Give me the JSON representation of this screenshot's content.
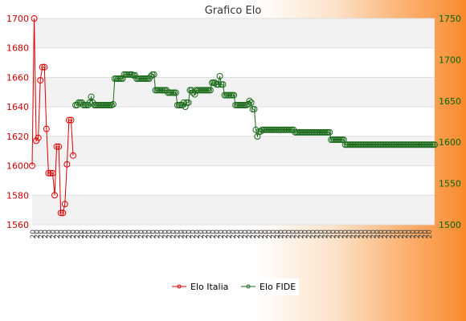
{
  "chart_data": {
    "type": "line",
    "title": "Grafico Elo",
    "xlabel": "",
    "ylabel_left": "",
    "ylabel_right": "",
    "y_left": {
      "ylim": [
        1560,
        1700
      ],
      "ticks": [
        1560,
        1580,
        1600,
        1620,
        1640,
        1660,
        1680,
        1700
      ],
      "color": "#cc0000"
    },
    "y_right": {
      "ylim": [
        1500,
        1750
      ],
      "ticks": [
        1500,
        1550,
        1600,
        1650,
        1700,
        1750
      ],
      "color": "#006600"
    },
    "grid": true,
    "legend_position": "bottom",
    "x_tick_label_prefix": "20",
    "series": [
      {
        "name": "Elo Italia",
        "axis": "left",
        "color": "#dd0000",
        "values": [
          1600,
          1700,
          1617,
          1619,
          1658,
          1667,
          1667,
          1625,
          1595,
          1595,
          1595,
          1580,
          1613,
          1613,
          1568,
          1568,
          1574,
          1601,
          1631,
          1631,
          1607
        ]
      },
      {
        "name": "Elo FIDE",
        "axis": "right",
        "color": "#1a6b1a",
        "values": [
          1645,
          1645,
          1648,
          1648,
          1648,
          1645,
          1645,
          1645,
          1645,
          1648,
          1655,
          1648,
          1645,
          1645,
          1645,
          1645,
          1645,
          1645,
          1645,
          1645,
          1645,
          1645,
          1645,
          1645,
          1646,
          1677,
          1677,
          1677,
          1677,
          1677,
          1677,
          1682,
          1682,
          1682,
          1682,
          1682,
          1682,
          1681,
          1681,
          1677,
          1677,
          1677,
          1677,
          1677,
          1677,
          1677,
          1677,
          1677,
          1680,
          1682,
          1682,
          1663,
          1663,
          1663,
          1663,
          1663,
          1663,
          1663,
          1663,
          1660,
          1660,
          1660,
          1660,
          1660,
          1660,
          1645,
          1645,
          1645,
          1645,
          1648,
          1643,
          1648,
          1648,
          1663,
          1663,
          1660,
          1658,
          1663,
          1663,
          1663,
          1663,
          1663,
          1663,
          1663,
          1663,
          1663,
          1663,
          1672,
          1672,
          1672,
          1670,
          1670,
          1680,
          1670,
          1670,
          1657,
          1657,
          1657,
          1657,
          1657,
          1657,
          1657,
          1645,
          1645,
          1645,
          1645,
          1645,
          1645,
          1645,
          1645,
          1646,
          1650,
          1648,
          1640,
          1640,
          1615,
          1607,
          1613,
          1613,
          1615,
          1615,
          1615,
          1615,
          1615,
          1615,
          1615,
          1615,
          1615,
          1615,
          1615,
          1615,
          1615,
          1615,
          1615,
          1615,
          1615,
          1615,
          1615,
          1615,
          1615,
          1612,
          1612,
          1612,
          1612,
          1612,
          1612,
          1612,
          1612,
          1612,
          1612,
          1612,
          1612,
          1612,
          1612,
          1612,
          1612,
          1612,
          1612,
          1612,
          1612,
          1612,
          1612,
          1612,
          1603,
          1603,
          1603,
          1603,
          1603,
          1603,
          1603,
          1603,
          1603,
          1597,
          1597,
          1597,
          1597,
          1597,
          1597,
          1597,
          1597,
          1597,
          1597,
          1597,
          1597,
          1597,
          1597,
          1597,
          1597,
          1597,
          1597,
          1597,
          1597,
          1597,
          1597,
          1597,
          1597,
          1597,
          1597,
          1597,
          1597,
          1597,
          1597,
          1597,
          1597,
          1597,
          1597,
          1597,
          1597,
          1597,
          1597,
          1597,
          1597,
          1597,
          1597,
          1597,
          1597,
          1597,
          1597,
          1597,
          1597,
          1597,
          1597,
          1597,
          1597,
          1597,
          1597,
          1597,
          1597,
          1597,
          1597
        ]
      }
    ]
  }
}
